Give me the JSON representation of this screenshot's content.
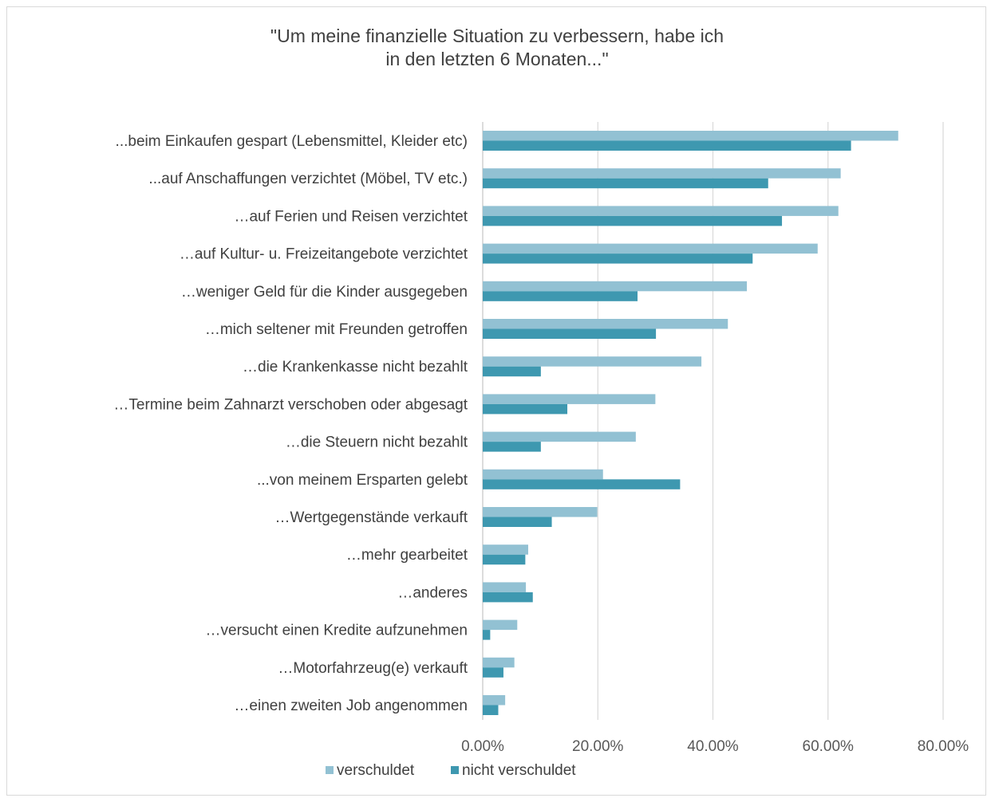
{
  "chart_data": {
    "type": "bar",
    "orientation": "horizontal",
    "title": [
      "\"Um meine finanzielle Situation zu verbessern, habe ich",
      "in den letzten 6 Monaten...\""
    ],
    "categories": [
      "...beim Einkaufen gespart (Lebensmittel, Kleider etc)",
      "...auf Anschaffungen verzichtet  (Möbel, TV etc.)",
      "…auf Ferien und Reisen verzichtet",
      "…auf Kultur- u. Freizeitangebote verzichtet",
      "…weniger Geld für die Kinder ausgegeben",
      "…mich seltener mit Freunden getroffen",
      "…die Krankenkasse nicht bezahlt",
      "…Termine beim Zahnarzt verschoben oder abgesagt",
      "…die Steuern nicht bezahlt",
      "...von meinem Ersparten gelebt",
      "…Wertgegenstände verkauft",
      "…mehr gearbeitet",
      "…anderes",
      "…versucht einen Kredite aufzunehmen",
      "…Motorfahrzeug(e) verkauft",
      "…einen zweiten Job angenommen"
    ],
    "series": [
      {
        "name": "verschuldet",
        "color": "#92c1d3",
        "values": [
          72.2,
          62.2,
          61.8,
          58.2,
          45.9,
          42.6,
          38.0,
          30.0,
          26.6,
          20.9,
          19.9,
          7.9,
          7.5,
          6.0,
          5.5,
          3.9
        ]
      },
      {
        "name": "nicht verschuldet",
        "color": "#3e98b0",
        "values": [
          64.0,
          49.6,
          52.0,
          46.9,
          26.9,
          30.1,
          10.1,
          14.7,
          10.1,
          34.3,
          12.0,
          7.4,
          8.7,
          1.3,
          3.6,
          2.7
        ]
      }
    ],
    "xlim": [
      0,
      80
    ],
    "xticks": [
      0,
      20,
      40,
      60,
      80
    ],
    "tick_labels": [
      "0.00%",
      "20.00%",
      "40.00%",
      "60.00%",
      "80.00%"
    ],
    "grid": true,
    "legend_position": "bottom"
  }
}
